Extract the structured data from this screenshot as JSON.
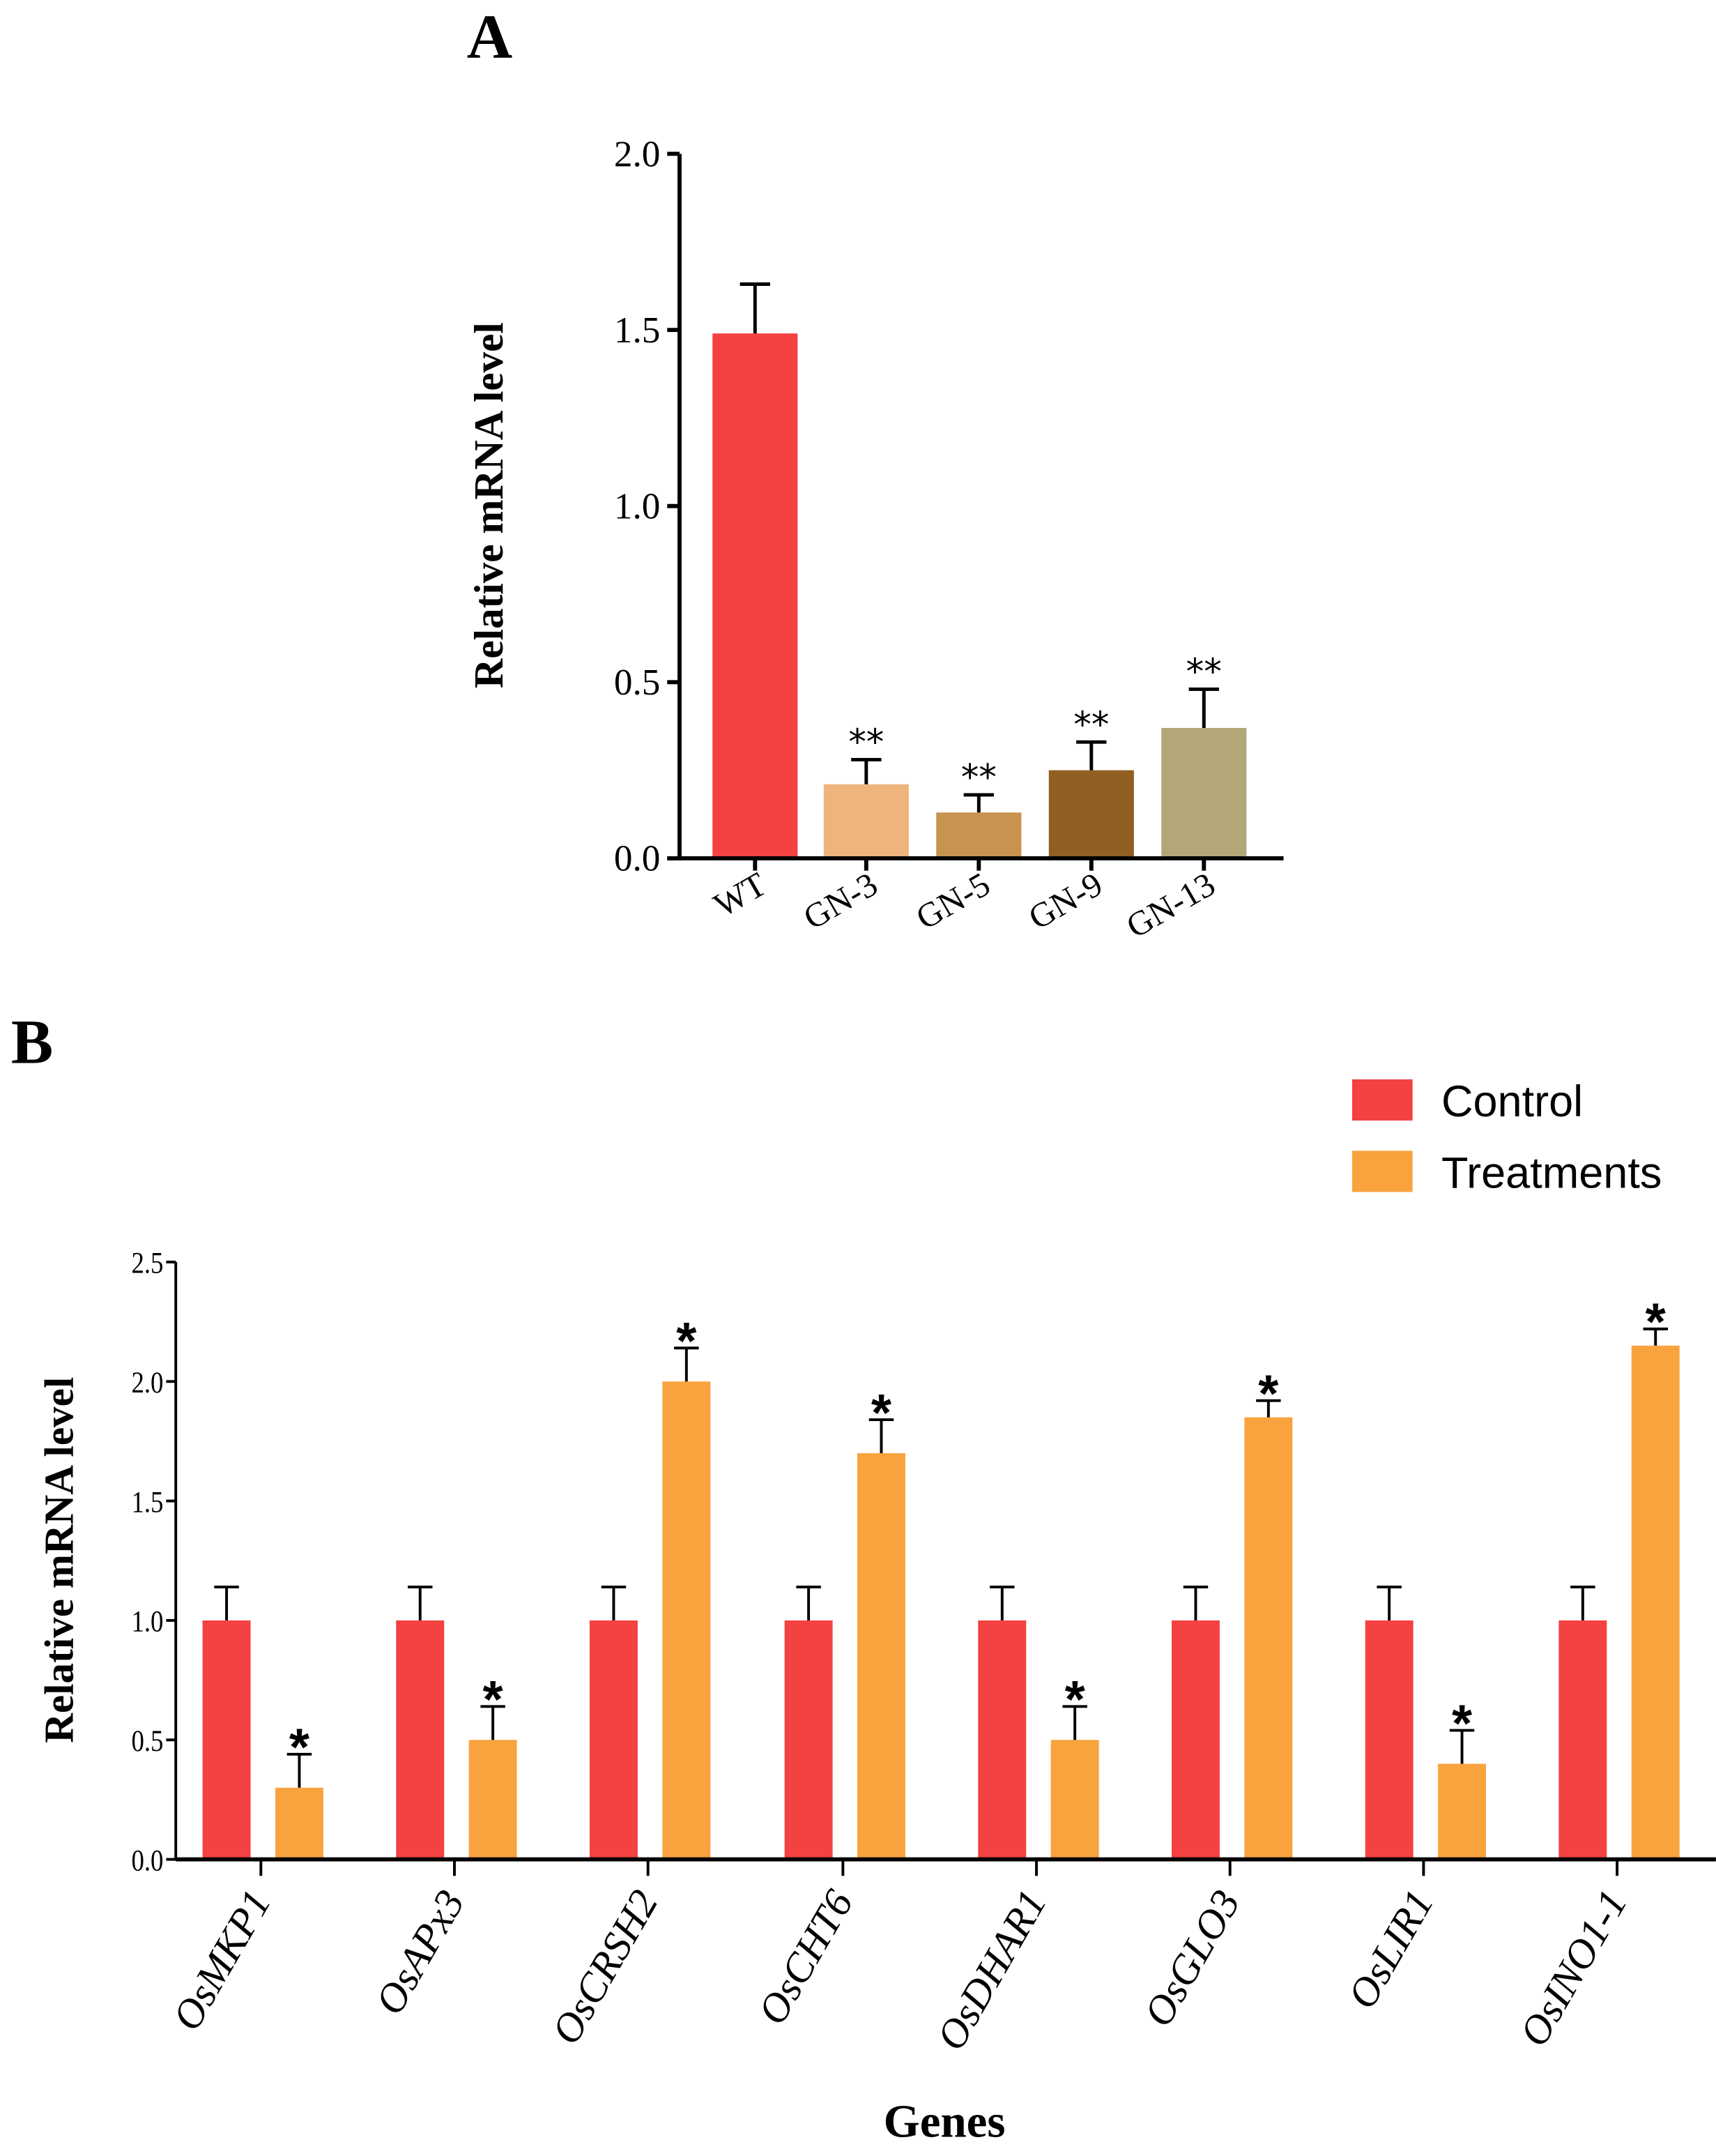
{
  "chart_data": [
    {
      "panel_label": "A",
      "type": "bar",
      "title": "",
      "xlabel": "",
      "ylabel": "Relative mRNA level",
      "ylim": [
        0,
        2.0
      ],
      "yticks": [
        "0.0",
        "0.5",
        "1.0",
        "1.5",
        "2.0"
      ],
      "categories": [
        "WT",
        "GN-3",
        "GN-5",
        "GN-9",
        "GN-13"
      ],
      "values": [
        1.49,
        0.21,
        0.13,
        0.25,
        0.37
      ],
      "errors": [
        0.14,
        0.07,
        0.05,
        0.08,
        0.11
      ],
      "significance": [
        "",
        "**",
        "**",
        "**",
        "**"
      ],
      "colors": [
        "#f44141",
        "#efb47b",
        "#c8934f",
        "#925f22",
        "#b3a778"
      ],
      "grid": false
    },
    {
      "panel_label": "B",
      "type": "bar",
      "title": "",
      "xlabel": "Genes",
      "ylabel": "Relative mRNA level",
      "ylim": [
        0,
        2.5
      ],
      "yticks": [
        "0.0",
        "0.5",
        "1.0",
        "1.5",
        "2.0",
        "2.5"
      ],
      "categories": [
        "OsMKP1",
        "OsAPx3",
        "OsCRSH2",
        "OsCHT6",
        "OsDHAR1",
        "OsGLO3",
        "OsLIR1",
        "OsINO1-1"
      ],
      "series": [
        {
          "name": "Control",
          "color": "#f44141",
          "values": [
            1.0,
            1.0,
            1.0,
            1.0,
            1.0,
            1.0,
            1.0,
            1.0
          ],
          "errors": [
            0.14,
            0.14,
            0.14,
            0.14,
            0.14,
            0.14,
            0.14,
            0.14
          ]
        },
        {
          "name": "Treatments",
          "color": "#f9a33f",
          "values": [
            0.3,
            0.5,
            2.0,
            1.7,
            0.5,
            1.85,
            0.4,
            2.15
          ],
          "errors": [
            0.14,
            0.14,
            0.14,
            0.14,
            0.14,
            0.07,
            0.14,
            0.07
          ],
          "significance": [
            "*",
            "*",
            "*",
            "*",
            "*",
            "*",
            "*",
            "*"
          ]
        }
      ],
      "legend_position": "top-right",
      "grid": false
    }
  ]
}
